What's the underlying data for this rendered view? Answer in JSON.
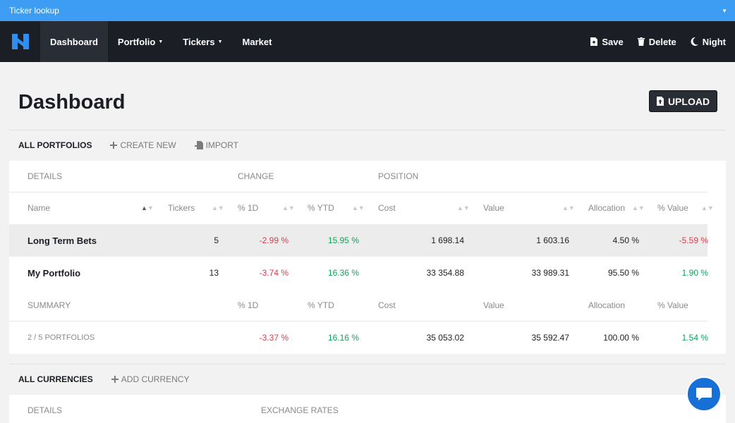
{
  "window": {
    "title": "Ticker lookup"
  },
  "nav": {
    "items": [
      {
        "label": "Dashboard",
        "active": true,
        "dropdown": false
      },
      {
        "label": "Portfolio",
        "active": false,
        "dropdown": true
      },
      {
        "label": "Tickers",
        "active": false,
        "dropdown": true
      },
      {
        "label": "Market",
        "active": false,
        "dropdown": false
      }
    ],
    "actions": {
      "save": "Save",
      "delete": "Delete",
      "night": "Night"
    }
  },
  "page": {
    "title": "Dashboard",
    "upload_label": "UPLOAD"
  },
  "portfolio_tabs": {
    "all": "ALL PORTFOLIOS",
    "create": "CREATE NEW",
    "import": "IMPORT"
  },
  "table": {
    "groups": {
      "details": "DETAILS",
      "change": "CHANGE",
      "position": "POSITION"
    },
    "columns": {
      "name": "Name",
      "tickers": "Tickers",
      "d1": "% 1D",
      "ytd": "% YTD",
      "cost": "Cost",
      "value": "Value",
      "allocation": "Allocation",
      "pvalue": "% Value"
    },
    "rows": [
      {
        "name": "Long Term Bets",
        "tickers": "5",
        "d1": "-2.99 %",
        "ytd": "15.95 %",
        "cost": "1 698.14",
        "value": "1 603.16",
        "allocation": "4.50 %",
        "pvalue": "-5.59 %"
      },
      {
        "name": "My Portfolio",
        "tickers": "13",
        "d1": "-3.74 %",
        "ytd": "16.36 %",
        "cost": "33 354.88",
        "value": "33 989.31",
        "allocation": "95.50 %",
        "pvalue": "1.90 %"
      }
    ],
    "summary": {
      "label": "SUMMARY",
      "d1": "% 1D",
      "ytd": "% YTD",
      "cost": "Cost",
      "value": "Value",
      "allocation": "Allocation",
      "pvalue": "% Value",
      "count": "2 / 5 PORTFOLIOS",
      "d1_val": "-3.37 %",
      "ytd_val": "16.16 %",
      "cost_val": "35 053.02",
      "value_val": "35 592.47",
      "allocation_val": "100.00 %",
      "pvalue_val": "1.54 %"
    }
  },
  "currency_tabs": {
    "all": "ALL CURRENCIES",
    "add": "ADD CURRENCY"
  },
  "currency_table": {
    "details": "DETAILS",
    "rates": "EXCHANGE RATES"
  },
  "colors": {
    "accent": "#3d9df2",
    "navbar": "#1b1e24",
    "negative": "#e0394c",
    "positive": "#10a35b",
    "chat": "#1670d6"
  }
}
